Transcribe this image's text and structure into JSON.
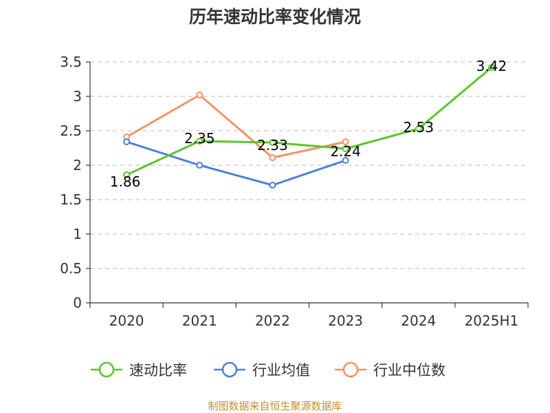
{
  "chart_data": {
    "type": "line",
    "title": "历年速动比率变化情况",
    "categories": [
      "2020",
      "2021",
      "2022",
      "2023",
      "2024",
      "2025H1"
    ],
    "ylim": [
      0,
      3.5
    ],
    "yticks": [
      "0",
      "0.5",
      "1",
      "1.5",
      "2",
      "2.5",
      "3",
      "3.5"
    ],
    "grid": true,
    "legend_position": "bottom",
    "series": [
      {
        "name": "速动比率",
        "color": "#5cc52c",
        "values": [
          1.86,
          2.35,
          2.33,
          2.24,
          2.53,
          3.42
        ],
        "labels": [
          "1.86",
          "2.35",
          "2.33",
          "2.24",
          "2.53",
          "3.42"
        ]
      },
      {
        "name": "行业均值",
        "color": "#4a7fe0",
        "values": [
          2.34,
          2.0,
          1.71,
          2.07,
          null,
          null
        ]
      },
      {
        "name": "行业中位数",
        "color": "#f59262",
        "values": [
          2.41,
          3.02,
          2.11,
          2.34,
          null,
          null
        ]
      }
    ],
    "source": "制图数据来自恒生聚源数据库"
  }
}
